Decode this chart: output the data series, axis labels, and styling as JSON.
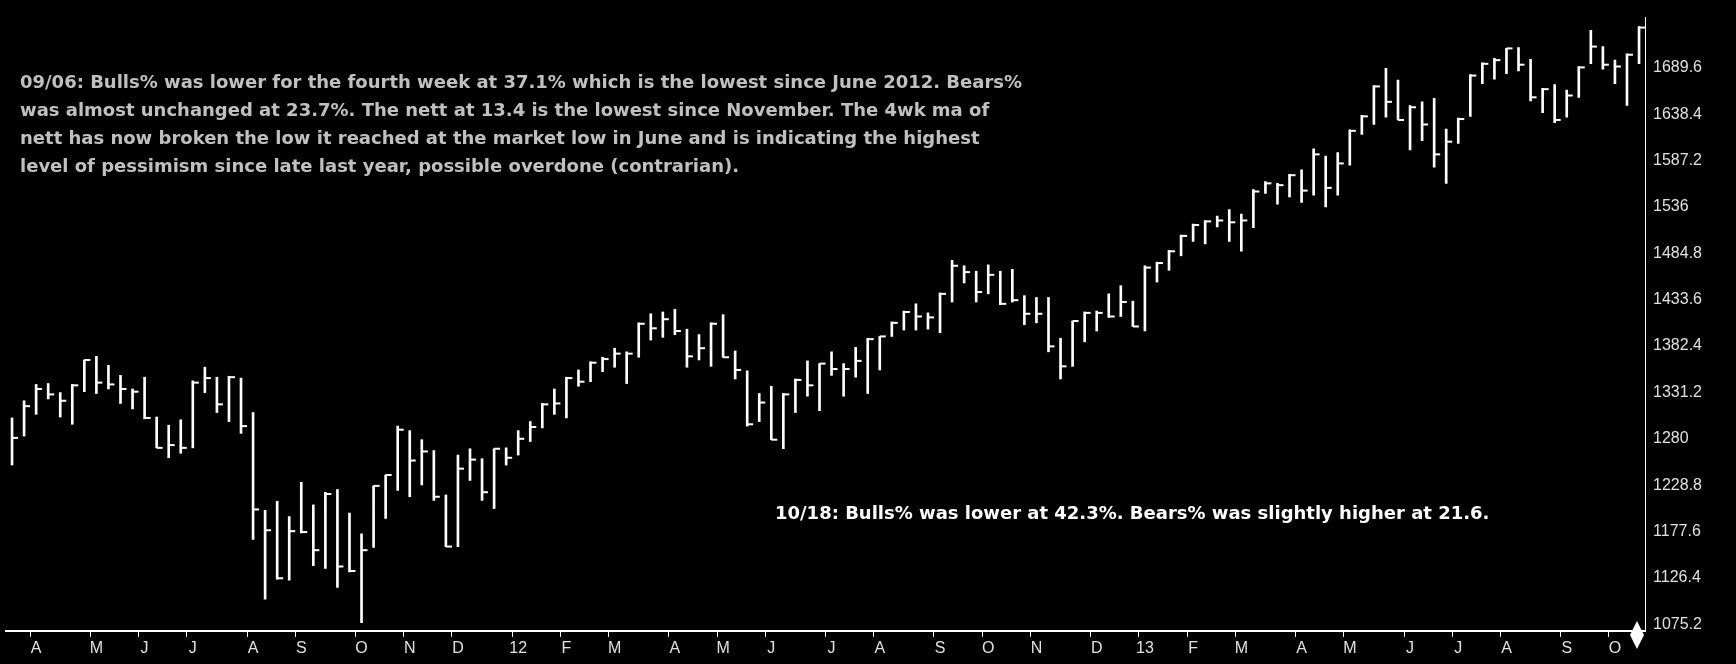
{
  "chart_data": {
    "type": "bar",
    "grid": false,
    "annotations": [
      "09/06: Bulls% was lower for the fourth week at 37.1% which is the lowest since June 2012.   Bears% was almost unchanged at  23.7%.  The nett at 13.4 is the lowest since November. The 4wk ma of nett has now broken the low it reached at the market low in June and is indicating  the highest level of pessimism since late last year, possible overdone (contrarian).",
      "10/18: Bulls% was lower at 42.3%.   Bears% was slightly higher at 21.6."
    ],
    "ylim": [
      1068,
      1745
    ],
    "yticks": [
      1075.2,
      1126.4,
      1177.6,
      1228.8,
      1280,
      1331.2,
      1382.4,
      1433.6,
      1484.8,
      1536,
      1587.2,
      1638.4,
      1689.6
    ],
    "categories": [
      null,
      null,
      "A",
      null,
      null,
      null,
      null,
      "M",
      null,
      null,
      null,
      "J",
      null,
      null,
      null,
      "J",
      null,
      null,
      null,
      null,
      "A",
      null,
      null,
      null,
      "S",
      null,
      null,
      null,
      null,
      "O",
      null,
      null,
      null,
      "N",
      null,
      null,
      null,
      "D",
      null,
      null,
      null,
      null,
      "12",
      null,
      null,
      null,
      "F",
      null,
      null,
      null,
      "M",
      null,
      null,
      null,
      null,
      "A",
      null,
      null,
      null,
      "M",
      null,
      null,
      null,
      "J",
      null,
      null,
      null,
      null,
      "J",
      null,
      null,
      null,
      "A",
      null,
      null,
      null,
      null,
      "S",
      null,
      null,
      null,
      "O",
      null,
      null,
      null,
      "N",
      null,
      null,
      null,
      null,
      "D",
      null,
      null,
      null,
      "13",
      null,
      null,
      null,
      "F",
      null,
      null,
      null,
      "M",
      null,
      null,
      null,
      null,
      "A",
      null,
      null,
      null,
      "M",
      null,
      null,
      null,
      null,
      "J",
      null,
      null,
      null,
      "J",
      null,
      null,
      null,
      "A",
      null,
      null,
      null,
      null,
      "S",
      null,
      null,
      null,
      "O",
      null,
      null
    ],
    "series": [
      {
        "type": "bar",
        "color": "#ffffff",
        "base": [
          1251,
          1283,
          1307,
          1324,
          1304,
          1296,
          1332,
          1330,
          1335,
          1319,
          1313,
          1302,
          1270,
          1259,
          1264,
          1270,
          1331,
          1309,
          1299,
          1286,
          1169,
          1103,
          1125,
          1124,
          1176,
          1140,
          1137,
          1116,
          1133,
          1077,
          1160,
          1192,
          1223,
          1216,
          1229,
          1212,
          1161,
          1161,
          1234,
          1212,
          1203,
          1251,
          1262,
          1277,
          1292,
          1307,
          1303,
          1338,
          1343,
          1354,
          1359,
          1341,
          1370,
          1389,
          1392,
          1395,
          1359,
          1367,
          1360,
          1370,
          1346,
          1294,
          1299,
          1279,
          1269,
          1309,
          1327,
          1311,
          1350,
          1327,
          1348,
          1330,
          1356,
          1393,
          1400,
          1400,
          1401,
          1397,
          1431,
          1452,
          1431,
          1440,
          1428,
          1431,
          1406,
          1408,
          1376,
          1346,
          1360,
          1387,
          1399,
          1414,
          1415,
          1404,
          1399,
          1453,
          1466,
          1482,
          1498,
          1495,
          1514,
          1498,
          1487,
          1513,
          1551,
          1539,
          1547,
          1541,
          1549,
          1536,
          1549,
          1582,
          1616,
          1627,
          1635,
          1632,
          1599,
          1609,
          1580,
          1562,
          1606,
          1636,
          1672,
          1677,
          1683,
          1686,
          1653,
          1640,
          1629,
          1635,
          1657,
          1694,
          1688,
          1672,
          1648,
          1694
        ],
        "values": [
          52,
          39,
          33,
          17,
          27,
          44,
          35,
          41,
          26,
          31,
          22,
          46,
          34,
          36,
          37,
          74,
          28,
          39,
          50,
          61,
          140,
          98,
          86,
          70,
          56,
          67,
          84,
          108,
          65,
          98,
          68,
          48,
          71,
          73,
          50,
          55,
          57,
          101,
          35,
          46,
          66,
          19,
          27,
          22,
          27,
          28,
          45,
          18,
          22,
          16,
          21,
          35,
          38,
          29,
          28,
          28,
          42,
          28,
          48,
          47,
          31,
          61,
          31,
          59,
          61,
          37,
          39,
          52,
          26,
          36,
          33,
          61,
          37,
          16,
          21,
          29,
          18,
          44,
          46,
          19,
          34,
          32,
          37,
          36,
          32,
          28,
          60,
          45,
          50,
          33,
          22,
          26,
          34,
          28,
          72,
          22,
          22,
          23,
          19,
          26,
          12,
          35,
          41,
          42,
          13,
          23,
          25,
          36,
          51,
          56,
          47,
          39,
          21,
          43,
          54,
          44,
          49,
          43,
          76,
          60,
          28,
          46,
          23,
          23,
          28,
          26,
          46,
          27,
          42,
          30,
          34,
          37,
          25,
          26,
          57,
          41
        ]
      },
      {
        "type": "scatter",
        "color": "#ffffff",
        "values": [
          1281,
          1316,
          1335,
          1329,
          1322,
          1339,
          1367,
          1342,
          1340,
          1335,
          1332,
          1303,
          1270,
          1273,
          1270,
          1342,
          1347,
          1318,
          1348,
          1294,
          1202,
          1179,
          1126,
          1178,
          1177,
          1157,
          1219,
          1139,
          1134,
          1157,
          1228,
          1240,
          1290,
          1256,
          1266,
          1216,
          1161,
          1247,
          1257,
          1221,
          1269,
          1259,
          1280,
          1293,
          1318,
          1319,
          1347,
          1343,
          1364,
          1368,
          1374,
          1374,
          1407,
          1402,
          1412,
          1399,
          1371,
          1380,
          1407,
          1370,
          1356,
          1296,
          1320,
          1279,
          1329,
          1345,
          1339,
          1363,
          1357,
          1357,
          1366,
          1390,
          1393,
          1408,
          1420,
          1415,
          1414,
          1440,
          1471,
          1464,
          1442,
          1461,
          1429,
          1433,
          1418,
          1418,
          1382,
          1360,
          1410,
          1419,
          1419,
          1415,
          1431,
          1404,
          1469,
          1474,
          1487,
          1504,
          1516,
          1520,
          1521,
          1519,
          1521,
          1553,
          1562,
          1560,
          1571,
          1554,
          1594,
          1557,
          1584,
          1620,
          1636,
          1669,
          1652,
          1632,
          1646,
          1627,
          1594,
          1608,
          1633,
          1681,
          1694,
          1698,
          1711,
          1693,
          1657,
          1666,
          1632,
          1659,
          1690,
          1713,
          1693,
          1691,
          1704,
          1734
        ]
      }
    ]
  }
}
